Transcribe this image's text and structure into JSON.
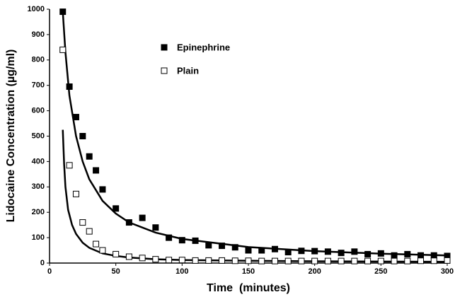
{
  "chart_data": {
    "type": "scatter",
    "x_label": "Time  (minutes)",
    "y_label": "Lidocaine Concentration (µg/ml)",
    "xlim": [
      0,
      300
    ],
    "ylim": [
      0,
      1000
    ],
    "xticks": [
      0,
      50,
      100,
      150,
      200,
      250,
      300
    ],
    "yticks": [
      0,
      100,
      200,
      300,
      400,
      500,
      600,
      700,
      800,
      900,
      1000
    ],
    "legend": "upper center",
    "series": [
      {
        "name": "Epinephrine",
        "marker": "filled",
        "color": "#000000",
        "x": [
          10,
          15,
          20,
          25,
          30,
          35,
          40,
          50,
          60,
          70,
          80,
          90,
          100,
          110,
          120,
          130,
          140,
          150,
          160,
          170,
          180,
          190,
          200,
          210,
          220,
          230,
          240,
          250,
          260,
          270,
          280,
          290,
          300
        ],
        "values": [
          990,
          695,
          575,
          500,
          420,
          365,
          290,
          215,
          160,
          178,
          140,
          100,
          90,
          88,
          70,
          68,
          62,
          50,
          50,
          55,
          43,
          48,
          47,
          45,
          40,
          45,
          35,
          38,
          30,
          35,
          30,
          30,
          28
        ]
      },
      {
        "name": "Plain",
        "marker": "open",
        "color": "#000000",
        "x": [
          10,
          15,
          20,
          25,
          30,
          35,
          40,
          50,
          60,
          70,
          80,
          90,
          100,
          110,
          120,
          130,
          140,
          150,
          160,
          170,
          180,
          190,
          200,
          210,
          220,
          230,
          240,
          250,
          260,
          270,
          280,
          290,
          300
        ],
        "values": [
          840,
          385,
          272,
          160,
          125,
          75,
          50,
          35,
          25,
          20,
          15,
          12,
          12,
          10,
          10,
          10,
          9,
          9,
          8,
          8,
          8,
          8,
          8,
          8,
          8,
          8,
          8,
          8,
          8,
          8,
          9,
          9,
          10
        ]
      }
    ],
    "fits": [
      {
        "color": "#000000",
        "x": [
          10,
          12,
          15,
          20,
          25,
          30,
          40,
          50,
          60,
          80,
          100,
          150,
          200,
          250,
          300
        ],
        "values": [
          990,
          830,
          660,
          500,
          400,
          330,
          245,
          195,
          160,
          120,
          95,
          63,
          47,
          37,
          30
        ]
      },
      {
        "color": "#000000",
        "x": [
          10,
          11,
          12,
          14,
          17,
          20,
          25,
          30,
          40,
          50,
          60,
          80,
          100,
          150,
          200,
          300
        ],
        "values": [
          525,
          390,
          300,
          210,
          150,
          115,
          80,
          60,
          38,
          28,
          22,
          15,
          12,
          9,
          7,
          5
        ]
      }
    ]
  }
}
